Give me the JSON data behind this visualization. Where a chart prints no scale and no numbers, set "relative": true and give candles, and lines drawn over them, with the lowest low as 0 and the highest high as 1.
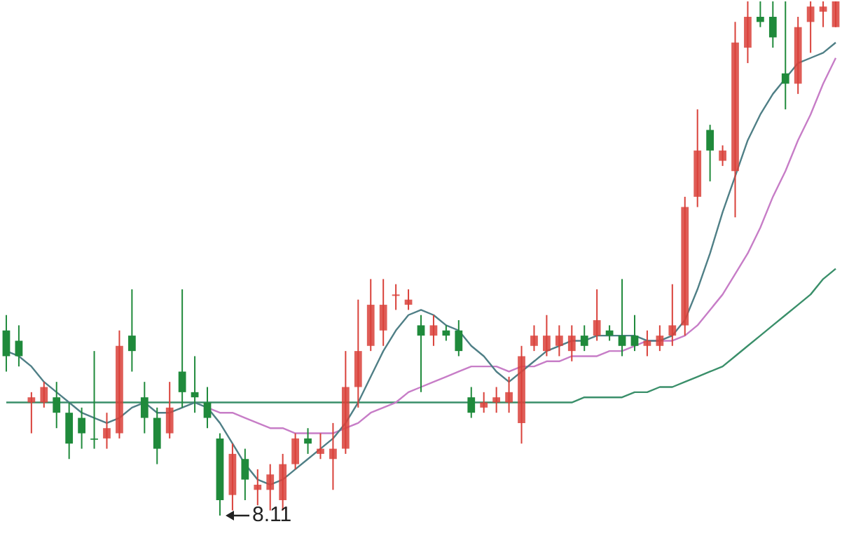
{
  "chart_data": {
    "type": "candlestick",
    "relative": true,
    "legend": false,
    "marker": "none",
    "categories": [
      null,
      null,
      null,
      null,
      null,
      null,
      null,
      null,
      null,
      null,
      null,
      null,
      null,
      null,
      null,
      null,
      null,
      null,
      null,
      null,
      null,
      null,
      null,
      null,
      null,
      null,
      null,
      null,
      null,
      null,
      null,
      null,
      null,
      null,
      null,
      null,
      null,
      null,
      null,
      null,
      null,
      null,
      null,
      null,
      null,
      null,
      null,
      null,
      null,
      null,
      null,
      null,
      null,
      null,
      null,
      null,
      null,
      null,
      null,
      null,
      null,
      null,
      null,
      null,
      null,
      null,
      null
    ],
    "ohlc": [
      [
        0.36,
        0.39,
        0.28,
        0.31
      ],
      [
        0.34,
        0.37,
        0.29,
        0.31
      ],
      [
        0.22,
        0.24,
        0.16,
        0.23
      ],
      [
        0.22,
        0.26,
        0.21,
        0.25
      ],
      [
        0.23,
        0.26,
        0.17,
        0.2
      ],
      [
        0.2,
        0.22,
        0.11,
        0.14
      ],
      [
        0.19,
        0.21,
        0.13,
        0.16
      ],
      [
        0.15,
        0.32,
        0.13,
        0.15
      ],
      [
        0.15,
        0.2,
        0.13,
        0.17
      ],
      [
        0.16,
        0.36,
        0.15,
        0.33
      ],
      [
        0.35,
        0.44,
        0.28,
        0.32
      ],
      [
        0.23,
        0.26,
        0.16,
        0.19
      ],
      [
        0.19,
        0.21,
        0.1,
        0.13
      ],
      [
        0.16,
        0.26,
        0.15,
        0.21
      ],
      [
        0.28,
        0.44,
        0.21,
        0.24
      ],
      [
        0.24,
        0.31,
        0.2,
        0.23
      ],
      [
        0.22,
        0.25,
        0.17,
        0.19
      ],
      [
        0.15,
        0.16,
        0,
        0.03
      ],
      [
        0.04,
        0.14,
        0.01,
        0.12
      ],
      [
        0.11,
        0.13,
        0.03,
        0.07
      ],
      [
        0.05,
        0.09,
        0.02,
        0.06
      ],
      [
        0.05,
        0.1,
        0.01,
        0.08
      ],
      [
        0.03,
        0.12,
        0.01,
        0.1
      ],
      [
        0.1,
        0.16,
        0.09,
        0.15
      ],
      [
        0.15,
        0.17,
        0.12,
        0.14
      ],
      [
        0.12,
        0.16,
        0.11,
        0.13
      ],
      [
        0.11,
        0.18,
        0.05,
        0.13
      ],
      [
        0.13,
        0.32,
        0.12,
        0.25
      ],
      [
        0.25,
        0.42,
        0.21,
        0.32
      ],
      [
        0.33,
        0.46,
        0.32,
        0.41
      ],
      [
        0.36,
        0.46,
        0.33,
        0.41
      ],
      [
        0.43,
        0.45,
        0.4,
        0.43
      ],
      [
        0.41,
        0.44,
        0.4,
        0.42
      ],
      [
        0.37,
        0.39,
        0.24,
        0.35
      ],
      [
        0.35,
        0.39,
        0.33,
        0.37
      ],
      [
        0.36,
        0.37,
        0.34,
        0.35
      ],
      [
        0.36,
        0.38,
        0.31,
        0.32
      ],
      [
        0.23,
        0.25,
        0.19,
        0.2
      ],
      [
        0.21,
        0.24,
        0.2,
        0.22
      ],
      [
        0.22,
        0.25,
        0.2,
        0.23
      ],
      [
        0.22,
        0.27,
        0.2,
        0.24
      ],
      [
        0.18,
        0.33,
        0.14,
        0.31
      ],
      [
        0.33,
        0.37,
        0.32,
        0.35
      ],
      [
        0.32,
        0.39,
        0.31,
        0.35
      ],
      [
        0.33,
        0.37,
        0.31,
        0.35
      ],
      [
        0.32,
        0.37,
        0.3,
        0.35
      ],
      [
        0.35,
        0.37,
        0.32,
        0.33
      ],
      [
        0.35,
        0.44,
        0.34,
        0.38
      ],
      [
        0.36,
        0.37,
        0.34,
        0.35
      ],
      [
        0.35,
        0.46,
        0.31,
        0.33
      ],
      [
        0.35,
        0.39,
        0.32,
        0.33
      ],
      [
        0.33,
        0.36,
        0.31,
        0.34
      ],
      [
        0.33,
        0.37,
        0.32,
        0.35
      ],
      [
        0.35,
        0.45,
        0.33,
        0.37
      ],
      [
        0.37,
        0.62,
        0.35,
        0.6
      ],
      [
        0.62,
        0.79,
        0.6,
        0.71
      ],
      [
        0.75,
        0.76,
        0.65,
        0.71
      ],
      [
        0.69,
        0.72,
        0.68,
        0.71
      ],
      [
        0.67,
        0.96,
        0.58,
        0.92
      ],
      [
        0.91,
        1,
        0.88,
        0.97
      ],
      [
        0.97,
        1,
        0.95,
        0.96
      ],
      [
        0.97,
        1,
        0.91,
        0.93
      ],
      [
        0.86,
        1,
        0.79,
        0.84
      ],
      [
        0.84,
        0.97,
        0.82,
        0.95
      ],
      [
        0.96,
        1,
        0.9,
        0.99
      ],
      [
        0.98,
        1,
        0.95,
        0.99
      ],
      [
        0.95,
        1,
        0.95,
        1
      ]
    ],
    "colors": [
      "#1f8a3b",
      "#1f8a3b",
      "#d9413a",
      "#d9413a",
      "#1f8a3b",
      "#1f8a3b",
      "#1f8a3b",
      "#1f8a3b",
      "#d9413a",
      "#d9413a",
      "#1f8a3b",
      "#1f8a3b",
      "#1f8a3b",
      "#d9413a",
      "#1f8a3b",
      "#1f8a3b",
      "#1f8a3b",
      "#1f8a3b",
      "#d9413a",
      "#1f8a3b",
      "#d9413a",
      "#d9413a",
      "#d9413a",
      "#d9413a",
      "#1f8a3b",
      "#d9413a",
      "#d9413a",
      "#d9413a",
      "#d9413a",
      "#d9413a",
      "#d9413a",
      "#d9413a",
      "#d9413a",
      "#1f8a3b",
      "#d9413a",
      "#1f8a3b",
      "#1f8a3b",
      "#1f8a3b",
      "#d9413a",
      "#d9413a",
      "#d9413a",
      "#d9413a",
      "#d9413a",
      "#d9413a",
      "#d9413a",
      "#d9413a",
      "#1f8a3b",
      "#d9413a",
      "#1f8a3b",
      "#1f8a3b",
      "#1f8a3b",
      "#d9413a",
      "#d9413a",
      "#d9413a",
      "#d9413a",
      "#d9413a",
      "#1f8a3b",
      "#d9413a",
      "#d9413a",
      "#d9413a",
      "#1f8a3b",
      "#1f8a3b",
      "#1f8a3b",
      "#d9413a",
      "#d9413a",
      "#d9413a",
      "#d9413a"
    ],
    "series": [
      {
        "type": "line",
        "color": "#4f7f86",
        "values": [
          0.32,
          0.31,
          0.29,
          0.26,
          0.24,
          0.22,
          0.2,
          0.19,
          0.18,
          0.19,
          0.21,
          0.22,
          0.2,
          0.2,
          0.21,
          0.22,
          0.21,
          0.18,
          0.14,
          0.1,
          0.07,
          0.06,
          0.07,
          0.09,
          0.11,
          0.13,
          0.15,
          0.18,
          0.22,
          0.27,
          0.32,
          0.36,
          0.39,
          0.4,
          0.39,
          0.37,
          0.36,
          0.33,
          0.31,
          0.28,
          0.26,
          0.28,
          0.3,
          0.32,
          0.33,
          0.34,
          0.34,
          0.35,
          0.35,
          0.35,
          0.35,
          0.34,
          0.34,
          0.35,
          0.38,
          0.44,
          0.51,
          0.59,
          0.66,
          0.73,
          0.78,
          0.82,
          0.85,
          0.88,
          0.89,
          0.9,
          0.92
        ]
      },
      {
        "type": "line",
        "color": "#c77dc7",
        "values": [
          null,
          null,
          null,
          null,
          null,
          null,
          null,
          null,
          null,
          null,
          null,
          null,
          null,
          null,
          null,
          null,
          0.21,
          0.2,
          0.2,
          0.19,
          0.18,
          0.17,
          0.17,
          0.16,
          0.16,
          0.16,
          0.16,
          0.17,
          0.18,
          0.2,
          0.21,
          0.22,
          0.24,
          0.25,
          0.26,
          0.27,
          0.28,
          0.29,
          0.29,
          0.29,
          0.28,
          0.29,
          0.29,
          0.3,
          0.3,
          0.31,
          0.31,
          0.31,
          0.32,
          0.32,
          0.33,
          0.34,
          0.34,
          0.34,
          0.35,
          0.37,
          0.4,
          0.43,
          0.47,
          0.51,
          0.56,
          0.62,
          0.67,
          0.73,
          0.78,
          0.84,
          0.89
        ]
      },
      {
        "type": "line",
        "color": "#3a8f6a",
        "values": [
          0.22,
          0.22,
          0.22,
          0.22,
          0.22,
          0.22,
          0.22,
          0.22,
          0.22,
          0.22,
          0.22,
          0.22,
          0.22,
          0.22,
          0.22,
          0.22,
          0.22,
          0.22,
          0.22,
          0.22,
          0.22,
          0.22,
          0.22,
          0.22,
          0.22,
          0.22,
          0.22,
          0.22,
          0.22,
          0.22,
          0.22,
          0.22,
          0.22,
          0.22,
          0.22,
          0.22,
          0.22,
          0.22,
          0.22,
          0.22,
          0.22,
          0.22,
          0.22,
          0.22,
          0.22,
          0.22,
          0.23,
          0.23,
          0.23,
          0.23,
          0.24,
          0.24,
          0.25,
          0.25,
          0.26,
          0.27,
          0.28,
          0.29,
          0.31,
          0.33,
          0.35,
          0.37,
          0.39,
          0.41,
          0.43,
          0.46,
          0.48
        ]
      }
    ],
    "annotations": [
      {
        "text": "8.11",
        "y": 0
      }
    ]
  }
}
